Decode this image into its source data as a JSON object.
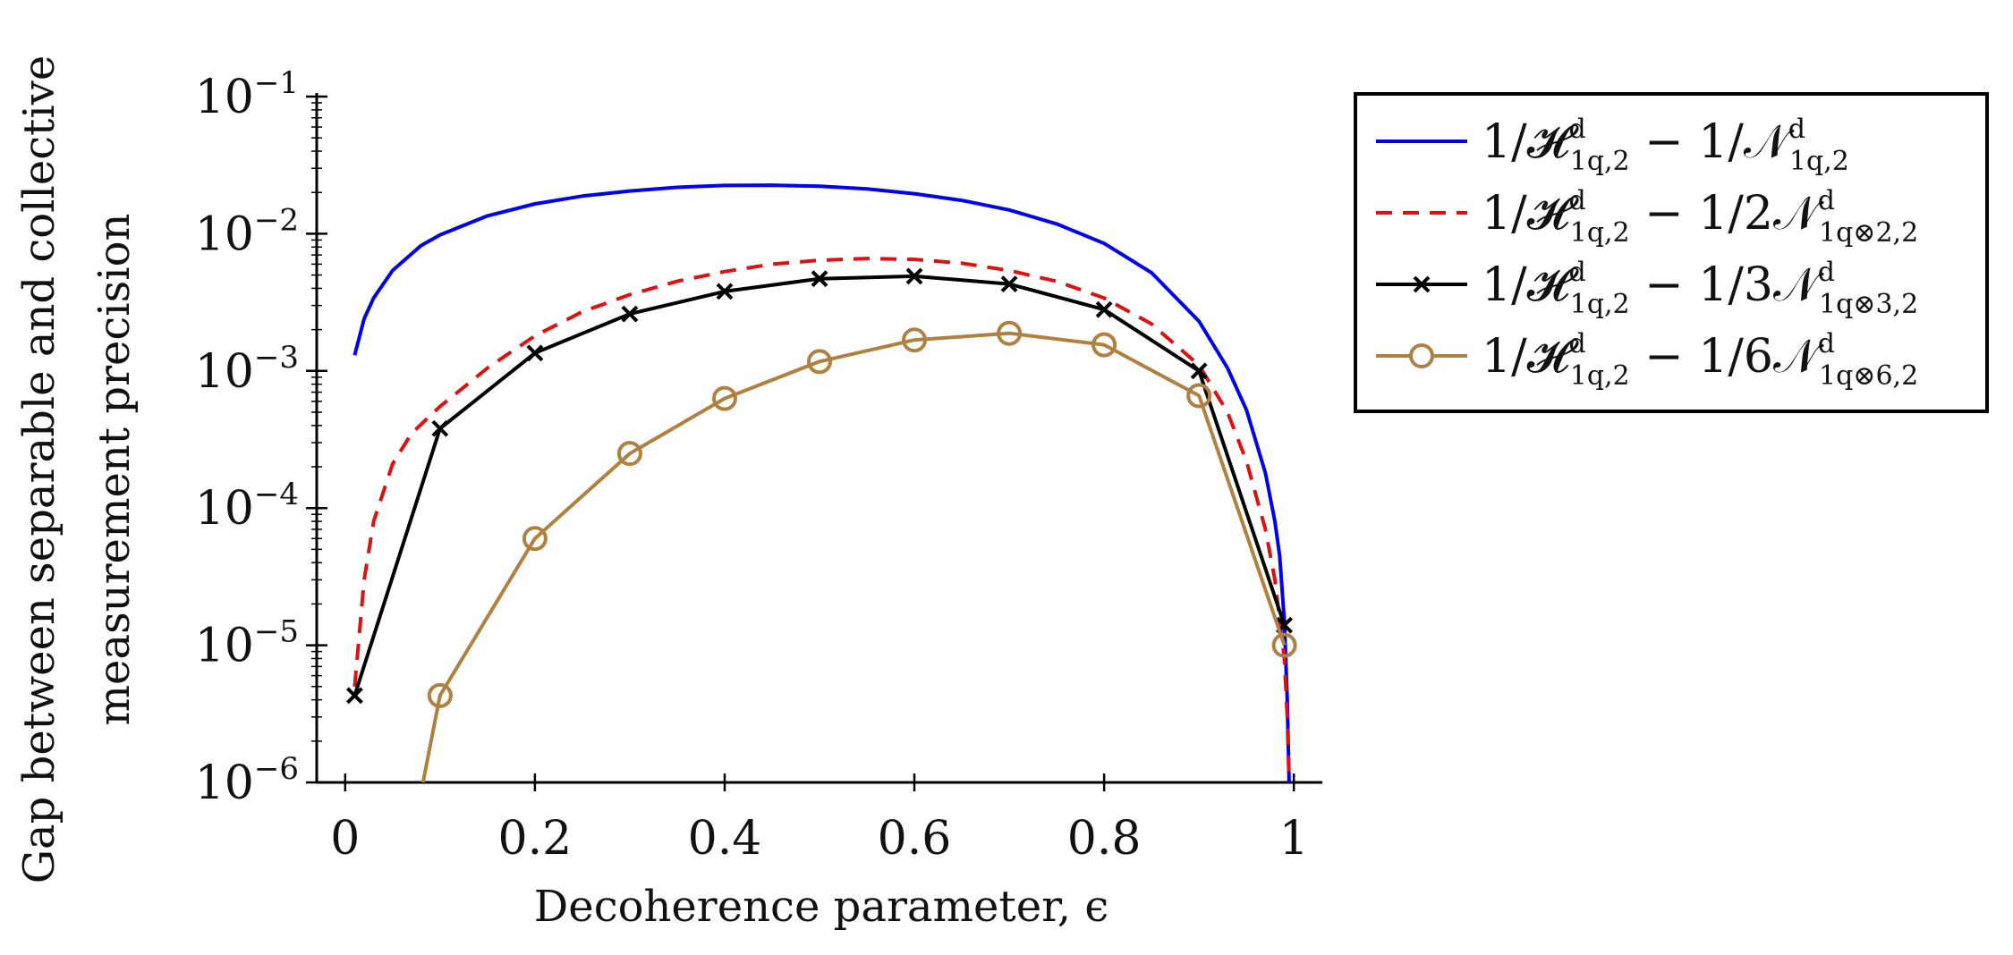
{
  "chart_data": {
    "type": "line",
    "y_scale": "log",
    "xlabel": "Decoherence parameter, ϵ",
    "ylabel_lines": [
      "Gap between separable and collective",
      "measurement precision"
    ],
    "xlim": [
      -0.03,
      1.03
    ],
    "ylim": [
      1e-06,
      0.1
    ],
    "x_ticks": [
      0,
      0.2,
      0.4,
      0.6,
      0.8,
      1
    ],
    "x_tick_labels": [
      "0",
      "0.2",
      "0.4",
      "0.6",
      "0.8",
      "1"
    ],
    "y_ticks": [
      {
        "base": "10",
        "exp": "−1",
        "value": 0.1
      },
      {
        "base": "10",
        "exp": "−2",
        "value": 0.01
      },
      {
        "base": "10",
        "exp": "−3",
        "value": 0.001
      },
      {
        "base": "10",
        "exp": "−4",
        "value": 0.0001
      },
      {
        "base": "10",
        "exp": "−5",
        "value": 1e-05
      },
      {
        "base": "10",
        "exp": "−6",
        "value": 1e-06
      }
    ],
    "legend_position": "outside-right",
    "series": [
      {
        "name": "1/H^d_{1q,2} − 1/N^d_{1q,2}",
        "legend_main": "1/𝓗",
        "legend_sup": "d",
        "legend_sub": "1q,2",
        "legend_rest": " − 1/𝒩",
        "legend_sup2": "d",
        "legend_sub2": "1q,2",
        "color": "#0000ee",
        "style": "solid",
        "marker": "none",
        "x": [
          0.01,
          0.02,
          0.03,
          0.05,
          0.08,
          0.1,
          0.15,
          0.2,
          0.25,
          0.3,
          0.35,
          0.4,
          0.45,
          0.5,
          0.55,
          0.6,
          0.65,
          0.7,
          0.75,
          0.8,
          0.85,
          0.9,
          0.93,
          0.95,
          0.97,
          0.98,
          0.985,
          0.99,
          0.993,
          0.995
        ],
        "y": [
          0.0013,
          0.0024,
          0.0034,
          0.0054,
          0.0082,
          0.0098,
          0.0135,
          0.0165,
          0.0188,
          0.0205,
          0.0218,
          0.0225,
          0.0226,
          0.0222,
          0.0212,
          0.0196,
          0.0175,
          0.0149,
          0.0118,
          0.0085,
          0.0052,
          0.0023,
          0.00105,
          0.00052,
          0.00018,
          8e-05,
          4.5e-05,
          1.5e-05,
          4e-06,
          1e-06
        ]
      },
      {
        "name": "1/H^d_{1q,2} − 1/2N^d_{1q⊗2,2}",
        "legend_main": "1/𝓗",
        "legend_sup": "d",
        "legend_sub": "1q,2",
        "legend_rest": " − 1/2𝒩",
        "legend_sup2": "d",
        "legend_sub2": "1q⊗2,2",
        "color": "#dd1111",
        "style": "dashed",
        "marker": "none",
        "x": [
          0.01,
          0.02,
          0.03,
          0.05,
          0.07,
          0.1,
          0.15,
          0.2,
          0.25,
          0.3,
          0.35,
          0.4,
          0.45,
          0.5,
          0.55,
          0.6,
          0.65,
          0.7,
          0.75,
          0.8,
          0.85,
          0.9,
          0.93,
          0.95,
          0.97,
          0.98,
          0.99,
          0.993,
          0.995
        ],
        "y": [
          5e-06,
          3e-05,
          8e-05,
          0.00021,
          0.00035,
          0.00055,
          0.00105,
          0.0018,
          0.0027,
          0.0036,
          0.0045,
          0.0053,
          0.006,
          0.0064,
          0.0066,
          0.0065,
          0.0061,
          0.0054,
          0.0045,
          0.0034,
          0.0022,
          0.0011,
          0.0005,
          0.00022,
          7e-05,
          3e-05,
          8e-06,
          3e-06,
          1e-06
        ]
      },
      {
        "name": "1/H^d_{1q,2} − 1/3N^d_{1q⊗3,2}",
        "legend_main": "1/𝓗",
        "legend_sup": "d",
        "legend_sub": "1q,2",
        "legend_rest": " − 1/3𝒩",
        "legend_sup2": "d",
        "legend_sub2": "1q⊗3,2",
        "color": "#000000",
        "style": "solid",
        "marker": "x",
        "x": [
          0.01,
          0.1,
          0.2,
          0.3,
          0.4,
          0.5,
          0.6,
          0.7,
          0.8,
          0.9,
          0.99
        ],
        "y": [
          4.3e-06,
          0.00038,
          0.00135,
          0.0026,
          0.0038,
          0.0047,
          0.0049,
          0.0043,
          0.0028,
          0.001,
          1.4e-05
        ]
      },
      {
        "name": "1/H^d_{1q,2} − 1/6N^d_{1q⊗6,2}",
        "legend_main": "1/𝓗",
        "legend_sup": "d",
        "legend_sub": "1q,2",
        "legend_rest": " − 1/6𝒩",
        "legend_sup2": "d",
        "legend_sub2": "1q⊗6,2",
        "color": "#b08040",
        "style": "solid",
        "marker": "circle",
        "x": [
          0.082,
          0.1,
          0.2,
          0.3,
          0.4,
          0.5,
          0.6,
          0.7,
          0.8,
          0.9,
          0.99
        ],
        "y": [
          1e-06,
          4.3e-06,
          6e-05,
          0.00025,
          0.00063,
          0.00117,
          0.00168,
          0.00188,
          0.00155,
          0.00066,
          1e-05
        ]
      }
    ]
  }
}
